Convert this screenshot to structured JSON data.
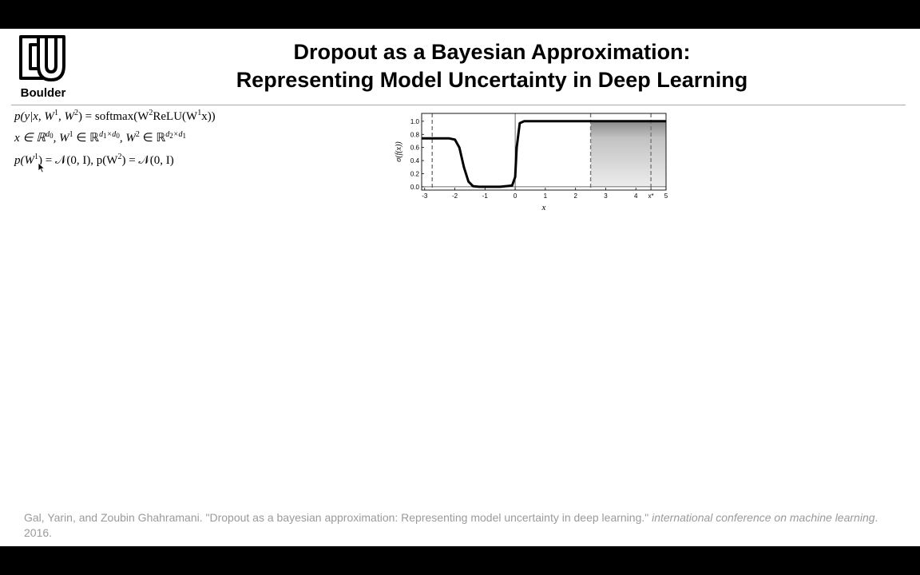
{
  "header": {
    "logo_text": "Boulder",
    "title_line1": "Dropout as a Bayesian Approximation:",
    "title_line2": "Representing Model Uncertainty in Deep Learning"
  },
  "equations": {
    "eq1": {
      "a": "p(y|x, W",
      "a_sup": "1",
      "b": ", W",
      "b_sup": "2",
      "c": ") = softmax(W",
      "c_sup": "2",
      "d": "ReLU(W",
      "d_sup": "1",
      "e": "x))"
    },
    "eq2": {
      "a": "x ∈ ℝ",
      "a_sup": "d",
      "a_sub": "0",
      "b": ", W",
      "b_sup": "1",
      "c": " ∈ ℝ",
      "c_sup": "d",
      "c_sub1": "1",
      "c_mid": "×d",
      "c_sub2": "0",
      "d": ", W",
      "d_sup": "2",
      "e": " ∈ ℝ",
      "e_sup": "d",
      "e_sub1": "2",
      "e_mid": "×d",
      "e_sub2": "1"
    },
    "eq3": {
      "a": "p(W",
      "a_sup": "1",
      "b": ") = 𝒩(0, I), p(W",
      "b_sup": "2",
      "c": ") = 𝒩(0, I)"
    }
  },
  "chart_data": {
    "type": "line",
    "title": "",
    "xlabel": "x",
    "ylabel": "σ(f(x))",
    "xlim": [
      -3.1,
      5.0
    ],
    "ylim": [
      -0.05,
      1.12
    ],
    "x_ticks": [
      "-3",
      "-2",
      "-1",
      "0",
      "1",
      "2",
      "3",
      "4",
      "x*",
      "5"
    ],
    "x_tick_values": [
      -3,
      -2,
      -1,
      0,
      1,
      2,
      3,
      4,
      4.5,
      5
    ],
    "y_ticks": [
      "0.0",
      "0.2",
      "0.4",
      "0.6",
      "0.8",
      "1.0"
    ],
    "y_tick_values": [
      0.0,
      0.2,
      0.4,
      0.6,
      0.8,
      1.0
    ],
    "series": [
      {
        "x": [
          -3.1,
          -2.2,
          -2.0,
          -1.85,
          -1.7,
          -1.55,
          -1.4,
          -1.2,
          -0.5,
          -0.1,
          0.0,
          0.05,
          0.15,
          0.3,
          1.0,
          2.5,
          5.0
        ],
        "y": [
          0.74,
          0.74,
          0.72,
          0.6,
          0.3,
          0.08,
          0.01,
          0.0,
          0.0,
          0.02,
          0.15,
          0.6,
          0.97,
          1.0,
          1.0,
          1.0,
          1.0
        ]
      }
    ],
    "dashed_vlines": [
      -2.75,
      2.5,
      4.5
    ],
    "solid_vline": 0,
    "uncertainty_region": {
      "x_start": 2.5,
      "x_end": 5.0,
      "y_low": 0.0,
      "y_high": 1.0
    },
    "grid": false,
    "colors": {
      "line": "#000000",
      "dashed": "#777777",
      "shade": "#d2d2d2"
    }
  },
  "citation": {
    "text": "Gal, Yarin, and Zoubin Ghahramani. \"Dropout as a bayesian approximation: Representing model uncertainty in deep learning.\" ",
    "venue": "international conference on machine learning",
    "year": ". 2016."
  }
}
